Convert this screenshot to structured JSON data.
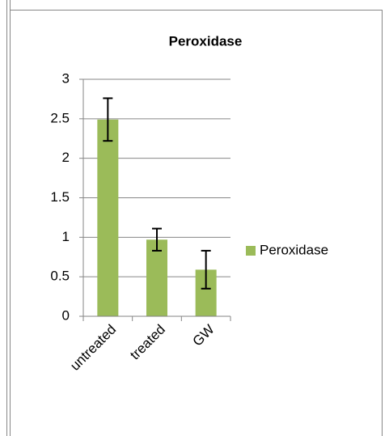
{
  "chart_data": {
    "type": "bar",
    "title": "Peroxidase",
    "categories": [
      "untreated",
      "treated",
      "GW"
    ],
    "series": [
      {
        "name": "Peroxidase",
        "color": "#9bbb59",
        "values": [
          2.49,
          0.97,
          0.59
        ],
        "errors": [
          0.27,
          0.14,
          0.24
        ]
      }
    ],
    "ylim": [
      0,
      3
    ],
    "yticks": [
      0,
      0.5,
      1,
      1.5,
      2,
      2.5,
      3
    ],
    "grid": true,
    "legend": "right"
  }
}
